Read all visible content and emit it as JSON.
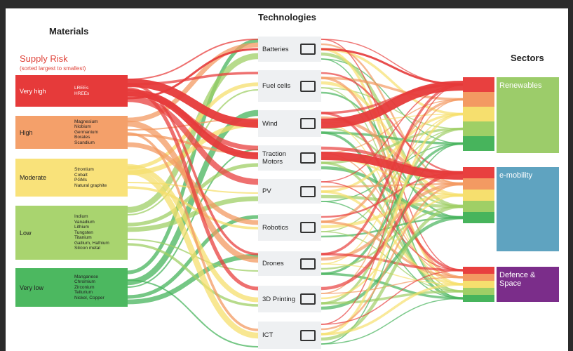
{
  "header": {
    "technologies": "Technologies",
    "materials": "Materials",
    "sectors": "Sectors"
  },
  "supply_risk": {
    "title": "Supply Risk",
    "subtitle": "(sorted largest to smallest)",
    "levels": [
      {
        "label": "Very high",
        "materials": [
          "LREEs",
          "HREEs"
        ]
      },
      {
        "label": "High",
        "materials": [
          "Magnesium",
          "Niobium",
          "Germanium",
          "Borates",
          "Scandium"
        ]
      },
      {
        "label": "Moderate",
        "materials": [
          "Strontium",
          "Cobalt",
          "PGMs",
          "Natural graphite"
        ]
      },
      {
        "label": "Low",
        "materials": [
          "Indium",
          "Vanadium",
          "Lithium",
          "Tungsten",
          "Titanium",
          "Gallium, Hafnium",
          "Silicon metal"
        ]
      },
      {
        "label": "Very low",
        "materials": [
          "Manganese",
          "Chromium",
          "Zirconium",
          "Tellurium",
          "Nickel, Copper"
        ]
      }
    ]
  },
  "technologies": [
    "Batteries",
    "Fuel cells",
    "Wind",
    "Traction Motors",
    "PV",
    "Robotics",
    "Drones",
    "3D Printing",
    "ICT"
  ],
  "sectors": [
    "Renewables",
    "e-mobility",
    "Defence & Space"
  ]
}
